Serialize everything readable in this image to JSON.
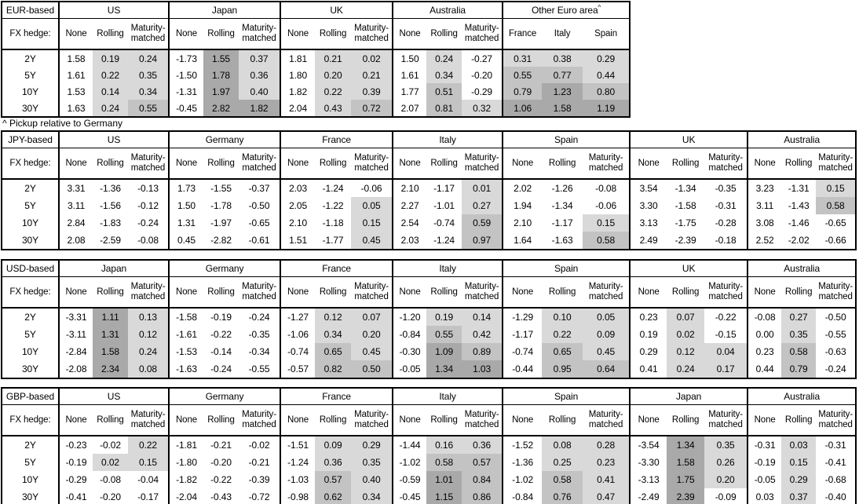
{
  "footnote": "^ Pickup relative to Germany",
  "hedge_row_label": "FX hedge:",
  "row_labels": [
    "2Y",
    "5Y",
    "10Y",
    "30Y"
  ],
  "default_cols": [
    "None",
    "Rolling",
    "Maturity-matched"
  ],
  "shading_colors": {
    "light": "#d9d9d9",
    "medium": "#c3c3c3",
    "dark": "#a9a9a9",
    "none": "#ffffff"
  },
  "shading_thresholds": {
    "light_above": 0,
    "medium_at": 0.5,
    "dark_at": 1.0
  },
  "tables": [
    {
      "base": "EUR-based",
      "groups": [
        {
          "name": "US",
          "rows": [
            [
              "1.58",
              "0.19",
              "0.24"
            ],
            [
              "1.61",
              "0.22",
              "0.35"
            ],
            [
              "1.53",
              "0.14",
              "0.34"
            ],
            [
              "1.63",
              "0.24",
              "0.55"
            ]
          ]
        },
        {
          "name": "Japan",
          "rows": [
            [
              "-1.73",
              "1.55",
              "0.37"
            ],
            [
              "-1.50",
              "1.78",
              "0.36"
            ],
            [
              "-1.31",
              "1.97",
              "0.40"
            ],
            [
              "-0.45",
              "2.82",
              "1.82"
            ]
          ]
        },
        {
          "name": "UK",
          "rows": [
            [
              "1.81",
              "0.21",
              "0.02"
            ],
            [
              "1.80",
              "0.20",
              "0.21"
            ],
            [
              "1.82",
              "0.22",
              "0.39"
            ],
            [
              "2.04",
              "0.43",
              "0.72"
            ]
          ]
        },
        {
          "name": "Australia",
          "rows": [
            [
              "1.50",
              "0.24",
              "-0.27"
            ],
            [
              "1.61",
              "0.34",
              "-0.20"
            ],
            [
              "1.77",
              "0.51",
              "-0.29"
            ],
            [
              "2.07",
              "0.81",
              "0.32"
            ]
          ]
        },
        {
          "name": "Other Euro area",
          "sup": "^",
          "cols": [
            "France",
            "Italy",
            "Spain"
          ],
          "shade_all": true,
          "rows": [
            [
              "0.31",
              "0.38",
              "0.29"
            ],
            [
              "0.55",
              "0.77",
              "0.44"
            ],
            [
              "0.79",
              "1.23",
              "0.80"
            ],
            [
              "1.06",
              "1.58",
              "1.19"
            ]
          ]
        }
      ]
    },
    {
      "base": "JPY-based",
      "groups": [
        {
          "name": "US",
          "rows": [
            [
              "3.31",
              "-1.36",
              "-0.13"
            ],
            [
              "3.11",
              "-1.56",
              "-0.12"
            ],
            [
              "2.84",
              "-1.83",
              "-0.24"
            ],
            [
              "2.08",
              "-2.59",
              "-0.08"
            ]
          ]
        },
        {
          "name": "Germany",
          "rows": [
            [
              "1.73",
              "-1.55",
              "-0.37"
            ],
            [
              "1.50",
              "-1.78",
              "-0.50"
            ],
            [
              "1.31",
              "-1.97",
              "-0.65"
            ],
            [
              "0.45",
              "-2.82",
              "-0.61"
            ]
          ]
        },
        {
          "name": "France",
          "rows": [
            [
              "2.03",
              "-1.24",
              "-0.06"
            ],
            [
              "2.05",
              "-1.22",
              "0.05"
            ],
            [
              "2.10",
              "-1.18",
              "0.15"
            ],
            [
              "1.51",
              "-1.77",
              "0.45"
            ]
          ]
        },
        {
          "name": "Italy",
          "rows": [
            [
              "2.10",
              "-1.17",
              "0.01"
            ],
            [
              "2.27",
              "-1.01",
              "0.27"
            ],
            [
              "2.54",
              "-0.74",
              "0.59"
            ],
            [
              "2.03",
              "-1.24",
              "0.97"
            ]
          ]
        },
        {
          "name": "Spain",
          "rows": [
            [
              "2.02",
              "-1.26",
              "-0.08"
            ],
            [
              "1.94",
              "-1.34",
              "-0.06"
            ],
            [
              "2.10",
              "-1.17",
              "0.15"
            ],
            [
              "1.64",
              "-1.63",
              "0.58"
            ]
          ]
        },
        {
          "name": "UK",
          "rows": [
            [
              "3.54",
              "-1.34",
              "-0.35"
            ],
            [
              "3.30",
              "-1.58",
              "-0.31"
            ],
            [
              "3.13",
              "-1.75",
              "-0.28"
            ],
            [
              "2.49",
              "-2.39",
              "-0.18"
            ]
          ]
        },
        {
          "name": "Australia",
          "rows": [
            [
              "3.23",
              "-1.31",
              "0.15"
            ],
            [
              "3.11",
              "-1.43",
              "0.58"
            ],
            [
              "3.08",
              "-1.46",
              "-0.65"
            ],
            [
              "2.52",
              "-2.02",
              "-0.66"
            ]
          ]
        }
      ]
    },
    {
      "base": "USD-based",
      "groups": [
        {
          "name": "Japan",
          "rows": [
            [
              "-3.31",
              "1.11",
              "0.13"
            ],
            [
              "-3.11",
              "1.31",
              "0.12"
            ],
            [
              "-2.84",
              "1.58",
              "0.24"
            ],
            [
              "-2.08",
              "2.34",
              "0.08"
            ]
          ]
        },
        {
          "name": "Germany",
          "rows": [
            [
              "-1.58",
              "-0.19",
              "-0.24"
            ],
            [
              "-1.61",
              "-0.22",
              "-0.35"
            ],
            [
              "-1.53",
              "-0.14",
              "-0.34"
            ],
            [
              "-1.63",
              "-0.24",
              "-0.55"
            ]
          ]
        },
        {
          "name": "France",
          "rows": [
            [
              "-1.27",
              "0.12",
              "0.07"
            ],
            [
              "-1.06",
              "0.34",
              "0.20"
            ],
            [
              "-0.74",
              "0.65",
              "0.45"
            ],
            [
              "-0.57",
              "0.82",
              "0.50"
            ]
          ]
        },
        {
          "name": "Italy",
          "rows": [
            [
              "-1.20",
              "0.19",
              "0.14"
            ],
            [
              "-0.84",
              "0.55",
              "0.42"
            ],
            [
              "-0.30",
              "1.09",
              "0.89"
            ],
            [
              "-0.05",
              "1.34",
              "1.03"
            ]
          ]
        },
        {
          "name": "Spain",
          "rows": [
            [
              "-1.29",
              "0.10",
              "0.05"
            ],
            [
              "-1.17",
              "0.22",
              "0.09"
            ],
            [
              "-0.74",
              "0.65",
              "0.45"
            ],
            [
              "-0.44",
              "0.95",
              "0.64"
            ]
          ]
        },
        {
          "name": "UK",
          "rows": [
            [
              "0.23",
              "0.07",
              "-0.22"
            ],
            [
              "0.19",
              "0.02",
              "-0.15"
            ],
            [
              "0.29",
              "0.12",
              "0.04"
            ],
            [
              "0.41",
              "0.24",
              "0.17"
            ]
          ]
        },
        {
          "name": "Australia",
          "rows": [
            [
              "-0.08",
              "0.27",
              "-0.50"
            ],
            [
              "0.00",
              "0.35",
              "-0.55"
            ],
            [
              "0.23",
              "0.58",
              "-0.63"
            ],
            [
              "0.44",
              "0.79",
              "-0.24"
            ]
          ]
        }
      ]
    },
    {
      "base": "GBP-based",
      "groups": [
        {
          "name": "US",
          "rows": [
            [
              "-0.23",
              "-0.02",
              "0.22"
            ],
            [
              "-0.19",
              "0.02",
              "0.15"
            ],
            [
              "-0.29",
              "-0.08",
              "-0.04"
            ],
            [
              "-0.41",
              "-0.20",
              "-0.17"
            ]
          ]
        },
        {
          "name": "Germany",
          "rows": [
            [
              "-1.81",
              "-0.21",
              "-0.02"
            ],
            [
              "-1.80",
              "-0.20",
              "-0.21"
            ],
            [
              "-1.82",
              "-0.22",
              "-0.39"
            ],
            [
              "-2.04",
              "-0.43",
              "-0.72"
            ]
          ]
        },
        {
          "name": "France",
          "rows": [
            [
              "-1.51",
              "0.09",
              "0.29"
            ],
            [
              "-1.24",
              "0.36",
              "0.35"
            ],
            [
              "-1.03",
              "0.57",
              "0.40"
            ],
            [
              "-0.98",
              "0.62",
              "0.34"
            ]
          ]
        },
        {
          "name": "Italy",
          "rows": [
            [
              "-1.44",
              "0.16",
              "0.36"
            ],
            [
              "-1.02",
              "0.58",
              "0.57"
            ],
            [
              "-0.59",
              "1.01",
              "0.84"
            ],
            [
              "-0.45",
              "1.15",
              "0.86"
            ]
          ]
        },
        {
          "name": "Spain",
          "rows": [
            [
              "-1.52",
              "0.08",
              "0.28"
            ],
            [
              "-1.36",
              "0.25",
              "0.23"
            ],
            [
              "-1.02",
              "0.58",
              "0.41"
            ],
            [
              "-0.84",
              "0.76",
              "0.47"
            ]
          ]
        },
        {
          "name": "Japan",
          "rows": [
            [
              "-3.54",
              "1.34",
              "0.35"
            ],
            [
              "-3.30",
              "1.58",
              "0.26"
            ],
            [
              "-3.13",
              "1.75",
              "0.20"
            ],
            [
              "-2.49",
              "2.39",
              "-0.09"
            ]
          ]
        },
        {
          "name": "Australia",
          "rows": [
            [
              "-0.31",
              "0.03",
              "-0.31"
            ],
            [
              "-0.19",
              "0.15",
              "-0.41"
            ],
            [
              "-0.05",
              "0.29",
              "-0.68"
            ],
            [
              "0.03",
              "0.37",
              "-0.40"
            ]
          ]
        }
      ]
    }
  ]
}
